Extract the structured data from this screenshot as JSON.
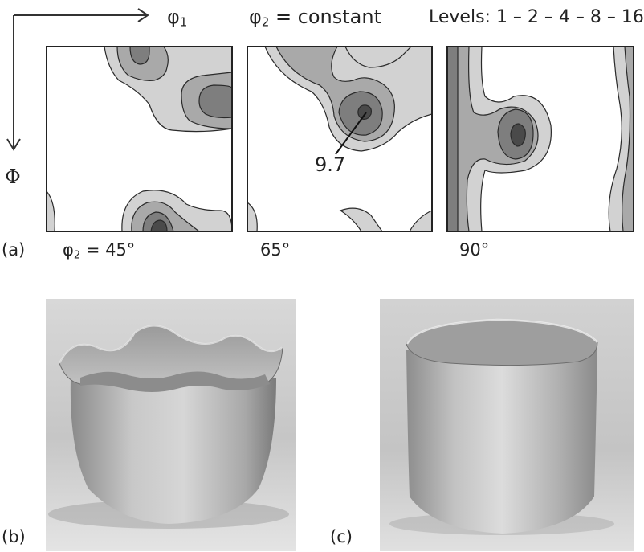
{
  "odf": {
    "phi1_symbol": "φ",
    "phi1_sub": "1",
    "Phi_symbol": "Φ",
    "phi2_symbol": "φ",
    "phi2_sub": "2",
    "phi2_constant_suffix": " = constant",
    "levels_text": "Levels: 1 – 2 – 4 – 8 – 16",
    "peak_value": "9.7",
    "panel_label_a": "(a)",
    "sections": [
      {
        "prefix_symbol": "φ",
        "prefix_sub": "2",
        "label": " = 45°"
      },
      {
        "label": "65°"
      },
      {
        "label": "90°"
      }
    ]
  },
  "photos": {
    "label_b": "(b)",
    "label_c": "(c)"
  },
  "colors": {
    "contour_l1": "#d2d2d2",
    "contour_l2": "#a9a9a9",
    "contour_l3": "#7e7e7e",
    "contour_l4": "#4a4a4a",
    "outline": "#222222",
    "photo_background": "#c4c4c4",
    "cup_metal": "#b9b9b9"
  }
}
